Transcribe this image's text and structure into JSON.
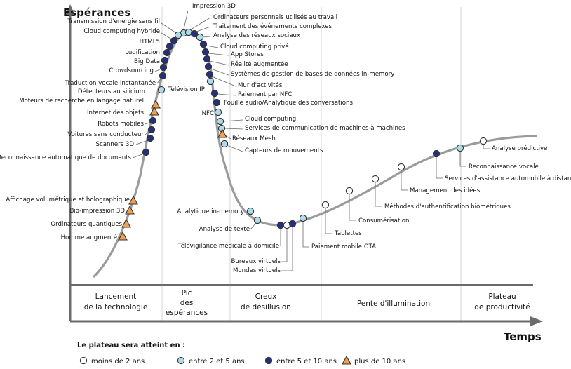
{
  "axis": {
    "y_title": "Espérances",
    "x_title": "Temps"
  },
  "phases": [
    {
      "line1": "Lancement",
      "line2": "de la technologie",
      "line3": ""
    },
    {
      "line1": "Pic",
      "line2": "des",
      "line3": "espérances"
    },
    {
      "line1": "Creux",
      "line2": "de désillusion",
      "line3": ""
    },
    {
      "line1": "Pente d'illumination",
      "line2": "",
      "line3": ""
    },
    {
      "line1": "Plateau",
      "line2": "de productivité",
      "line3": ""
    }
  ],
  "legend": {
    "title": "Le plateau sera atteint en :",
    "items": [
      {
        "label": "moins de 2 ans",
        "category": "lt2"
      },
      {
        "label": "entre 2 et 5 ans",
        "category": "2to5"
      },
      {
        "label": "entre 5 et 10 ans",
        "category": "5to10"
      },
      {
        "label": "plus de 10 ans",
        "category": "gt10"
      }
    ]
  },
  "colors": {
    "lt2": "#ffffff",
    "2to5": "#aedbe9",
    "5to10": "#26307a",
    "gt10": "#f0a050",
    "curve": "#9a9c9c",
    "axis": "#6b6b6b"
  },
  "technologies": [
    {
      "label": "Impression 3D",
      "category": "2to5"
    },
    {
      "label": "Ordinateurs personnels utilisés au travail",
      "category": "2to5"
    },
    {
      "label": "Traitement des événements complexes",
      "category": "5to10"
    },
    {
      "label": "Analyse des réseaux sociaux",
      "category": "2to5"
    },
    {
      "label": "Transmission d'énergie sans fil",
      "category": "2to5"
    },
    {
      "label": "Cloud computing hybride",
      "category": "5to10"
    },
    {
      "label": "HTML5",
      "category": "5to10"
    },
    {
      "label": "Cloud computing privé",
      "category": "5to10"
    },
    {
      "label": "App Stores",
      "category": "5to10"
    },
    {
      "label": "Ludification",
      "category": "5to10"
    },
    {
      "label": "Réalité augmentée",
      "category": "5to10"
    },
    {
      "label": "Big Data",
      "category": "5to10"
    },
    {
      "label": "Systèmes de gestion de bases de données in-memory",
      "category": "5to10"
    },
    {
      "label": "Crowdsourcing",
      "category": "5to10"
    },
    {
      "label": "Mur d'activités",
      "category": "5to10"
    },
    {
      "label": "Traduction vocale instantanée",
      "category": "5to10"
    },
    {
      "label": "Télévision IP",
      "category": "2to5"
    },
    {
      "label": "Paiement par NFC",
      "category": "5to10"
    },
    {
      "label": "Détecteurs au silicium",
      "category": "2to5"
    },
    {
      "label": "Fouille audio/Analytique des conversations",
      "category": "5to10"
    },
    {
      "label": "Moteurs de recherche en langage naturel",
      "category": "gt10"
    },
    {
      "label": "Internet des objets",
      "category": "gt10"
    },
    {
      "label": "NFC",
      "category": "2to5"
    },
    {
      "label": "Cloud computing",
      "category": "2to5"
    },
    {
      "label": "Robots mobiles",
      "category": "5to10"
    },
    {
      "label": "Services de communication de machines à machines",
      "category": "2to5"
    },
    {
      "label": "Voitures sans conducteur",
      "category": "5to10"
    },
    {
      "label": "Réseaux Mesh",
      "category": "gt10"
    },
    {
      "label": "Scanners 3D",
      "category": "5to10"
    },
    {
      "label": "Capteurs de mouvements",
      "category": "2to5"
    },
    {
      "label": "Reconnaissance automatique de documents",
      "category": "5to10"
    },
    {
      "label": "Affichage volumétrique et holographique",
      "category": "gt10"
    },
    {
      "label": "Bio-impression 3D",
      "category": "gt10"
    },
    {
      "label": "Ordinateurs quantiques",
      "category": "gt10"
    },
    {
      "label": "Homme augmenté",
      "category": "gt10"
    },
    {
      "label": "Analytique in-memory",
      "category": "2to5"
    },
    {
      "label": "Analyse de texte",
      "category": "2to5"
    },
    {
      "label": "Télévigilance médicale à domicile",
      "category": "5to10"
    },
    {
      "label": "Bureaux virtuels",
      "category": "lt2"
    },
    {
      "label": "Mondes virtuels",
      "category": "5to10"
    },
    {
      "label": "Paiement mobile OTA",
      "category": "2to5"
    },
    {
      "label": "Tablettes",
      "category": "lt2"
    },
    {
      "label": "Consumérisation",
      "category": "lt2"
    },
    {
      "label": "Méthodes d'authentification biométriques",
      "category": "lt2"
    },
    {
      "label": "Management des idées",
      "category": "lt2"
    },
    {
      "label": "Services d'assistance automobile à distance",
      "category": "5to10"
    },
    {
      "label": "Reconnaissance vocale",
      "category": "2to5"
    },
    {
      "label": "Analyse prédictive",
      "category": "lt2"
    }
  ]
}
